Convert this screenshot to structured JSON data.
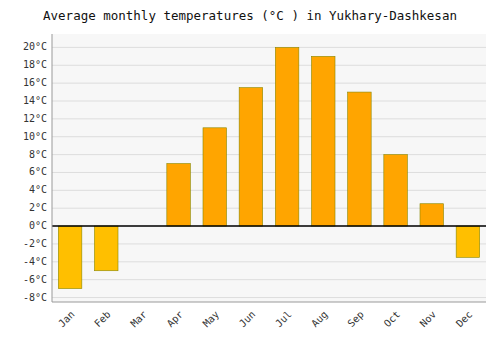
{
  "chart_data": {
    "type": "bar",
    "title": "Average monthly temperatures (°C ) in Yukhary-Dashkesan",
    "categories": [
      "Jan",
      "Feb",
      "Mar",
      "Apr",
      "May",
      "Jun",
      "Jul",
      "Aug",
      "Sep",
      "Oct",
      "Nov",
      "Dec"
    ],
    "values": [
      -7,
      -5,
      0,
      7,
      11,
      15.5,
      20,
      19,
      15,
      8,
      2.5,
      -3.5
    ],
    "colors": [
      "#FFBF00",
      "#FFBF00",
      "#FFA500",
      "#FFA500",
      "#FFA500",
      "#FFA500",
      "#FFA500",
      "#FFA500",
      "#FFA500",
      "#FFA500",
      "#FFA500",
      "#FFBF00"
    ],
    "ylim": [
      -8.5,
      21.5
    ],
    "yticks": [
      {
        "value": -8,
        "label": "-8°C"
      },
      {
        "value": -6,
        "label": "-6°C"
      },
      {
        "value": -4,
        "label": "-4°C"
      },
      {
        "value": -2,
        "label": "-2°C"
      },
      {
        "value": 0,
        "label": "0°C"
      },
      {
        "value": 2,
        "label": "2°C"
      },
      {
        "value": 4,
        "label": "4°C"
      },
      {
        "value": 6,
        "label": "6°C"
      },
      {
        "value": 8,
        "label": "8°C"
      },
      {
        "value": 10,
        "label": "10°C"
      },
      {
        "value": 12,
        "label": "12°C"
      },
      {
        "value": 14,
        "label": "14°C"
      },
      {
        "value": 16,
        "label": "16°C"
      },
      {
        "value": 18,
        "label": "18°C"
      },
      {
        "value": 20,
        "label": "20°C"
      }
    ],
    "grid": true
  }
}
